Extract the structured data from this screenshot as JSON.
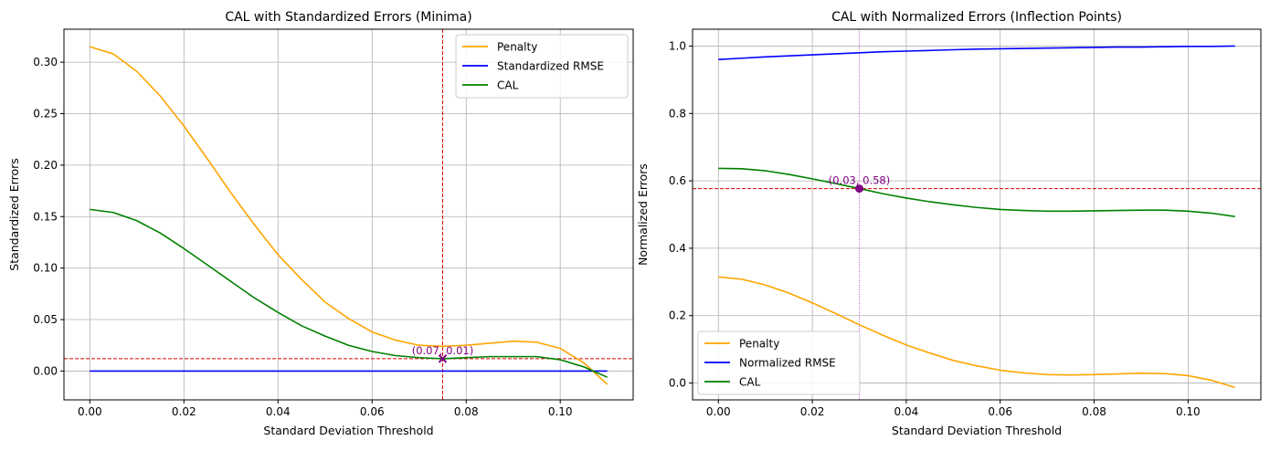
{
  "chart_data": [
    {
      "type": "line",
      "title": "CAL with Standardized Errors (Minima)",
      "xlabel": "Standard Deviation Threshold",
      "ylabel": "Standardized Errors",
      "xlim": [
        -0.0055,
        0.1155
      ],
      "ylim": [
        -0.028,
        0.332
      ],
      "xticks": [
        0.0,
        0.02,
        0.04,
        0.06,
        0.08,
        0.1
      ],
      "xtick_labels": [
        "0.00",
        "0.02",
        "0.04",
        "0.06",
        "0.08",
        "0.10"
      ],
      "yticks": [
        0.0,
        0.05,
        0.1,
        0.15,
        0.2,
        0.25,
        0.3
      ],
      "ytick_labels": [
        "0.00",
        "0.05",
        "0.10",
        "0.15",
        "0.20",
        "0.25",
        "0.30"
      ],
      "grid": true,
      "legend_position": "top-right",
      "x": [
        0.0,
        0.005,
        0.01,
        0.015,
        0.02,
        0.025,
        0.03,
        0.035,
        0.04,
        0.045,
        0.05,
        0.055,
        0.06,
        0.065,
        0.07,
        0.075,
        0.08,
        0.085,
        0.09,
        0.095,
        0.1,
        0.105,
        0.11
      ],
      "series": [
        {
          "name": "Penalty",
          "color": "#ffa500",
          "values": [
            0.315,
            0.308,
            0.291,
            0.267,
            0.238,
            0.206,
            0.173,
            0.142,
            0.113,
            0.089,
            0.067,
            0.051,
            0.038,
            0.03,
            0.025,
            0.024,
            0.025,
            0.027,
            0.029,
            0.028,
            0.022,
            0.008,
            -0.013
          ]
        },
        {
          "name": "Standardized RMSE",
          "color": "#0000ff",
          "values": [
            0.0,
            0.0,
            0.0,
            0.0,
            0.0,
            0.0,
            0.0,
            0.0,
            0.0,
            0.0,
            0.0,
            0.0,
            0.0,
            0.0,
            0.0,
            0.0,
            0.0,
            0.0,
            0.0,
            0.0,
            0.0,
            0.0,
            0.0
          ]
        },
        {
          "name": "CAL",
          "color": "#008000",
          "values": [
            0.157,
            0.154,
            0.146,
            0.134,
            0.119,
            0.103,
            0.087,
            0.071,
            0.057,
            0.044,
            0.034,
            0.025,
            0.019,
            0.015,
            0.013,
            0.012,
            0.013,
            0.014,
            0.014,
            0.014,
            0.011,
            0.004,
            -0.006
          ]
        }
      ],
      "reference_lines": {
        "vertical_x": 0.075,
        "horizontal_y": 0.012,
        "color": "#dc0000"
      },
      "marker": {
        "x": 0.075,
        "y": 0.012,
        "shape": "x",
        "color": "#800080"
      },
      "annotations": [
        {
          "text": "(0.07, 0.01)",
          "x": 0.075,
          "y": 0.012,
          "color": "#800080"
        }
      ]
    },
    {
      "type": "line",
      "title": "CAL with Normalized Errors (Inflection Points)",
      "xlabel": "Standard Deviation Threshold",
      "ylabel": "Normalized Errors",
      "xlim": [
        -0.0055,
        0.1155
      ],
      "ylim": [
        -0.05,
        1.05
      ],
      "xticks": [
        0.0,
        0.02,
        0.04,
        0.06,
        0.08,
        0.1
      ],
      "xtick_labels": [
        "0.00",
        "0.02",
        "0.04",
        "0.06",
        "0.08",
        "0.10"
      ],
      "yticks": [
        0.0,
        0.2,
        0.4,
        0.6,
        0.8,
        1.0
      ],
      "ytick_labels": [
        "0.0",
        "0.2",
        "0.4",
        "0.6",
        "0.8",
        "1.0"
      ],
      "grid": true,
      "legend_position": "bottom-left",
      "x": [
        0.0,
        0.005,
        0.01,
        0.015,
        0.02,
        0.025,
        0.03,
        0.035,
        0.04,
        0.045,
        0.05,
        0.055,
        0.06,
        0.065,
        0.07,
        0.075,
        0.08,
        0.085,
        0.09,
        0.095,
        0.1,
        0.105,
        0.11
      ],
      "series": [
        {
          "name": "Penalty",
          "color": "#ffa500",
          "values": [
            0.315,
            0.308,
            0.291,
            0.267,
            0.238,
            0.206,
            0.173,
            0.142,
            0.113,
            0.089,
            0.067,
            0.051,
            0.038,
            0.03,
            0.025,
            0.024,
            0.025,
            0.027,
            0.029,
            0.028,
            0.022,
            0.008,
            -0.013
          ]
        },
        {
          "name": "Normalized RMSE",
          "color": "#0000ff",
          "values": [
            0.96,
            0.964,
            0.968,
            0.971,
            0.974,
            0.977,
            0.98,
            0.983,
            0.985,
            0.987,
            0.989,
            0.991,
            0.992,
            0.993,
            0.994,
            0.995,
            0.996,
            0.997,
            0.997,
            0.998,
            0.999,
            0.999,
            1.0
          ]
        },
        {
          "name": "CAL",
          "color": "#008000",
          "values": [
            0.637,
            0.636,
            0.63,
            0.619,
            0.606,
            0.592,
            0.577,
            0.562,
            0.549,
            0.538,
            0.529,
            0.521,
            0.515,
            0.512,
            0.51,
            0.51,
            0.511,
            0.512,
            0.513,
            0.513,
            0.51,
            0.504,
            0.494
          ]
        }
      ],
      "reference_lines": {
        "vertical_x": 0.03,
        "horizontal_y": 0.577,
        "color": "#dc0000",
        "vertical_color": "#cc44cc"
      },
      "marker": {
        "x": 0.03,
        "y": 0.577,
        "shape": "circle",
        "color": "#800080"
      },
      "annotations": [
        {
          "text": "(0.03, 0.58)",
          "x": 0.03,
          "y": 0.577,
          "color": "#800080"
        }
      ]
    }
  ]
}
